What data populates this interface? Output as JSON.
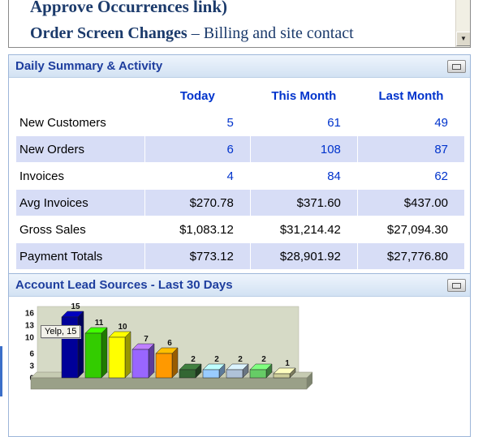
{
  "icons": {
    "scroll_down_glyph": "▼"
  },
  "colors": {
    "accent_title": "#1E3E9E",
    "value_blue": "#0033CC",
    "alt_row": "#D7DDF6",
    "panel_border": "#9DB6D9",
    "link_navy": "#1B3A6B"
  },
  "top_panel": {
    "line1": "Approve Occurrences link)",
    "line2_bold": "Order Screen Changes",
    "line2_rest": " – Billing and site contact"
  },
  "daily_summary": {
    "title": "Daily Summary & Activity",
    "columns": {
      "today": "Today",
      "this_month": "This Month",
      "last_month": "Last Month"
    },
    "rows": [
      {
        "label": "New Customers",
        "today": "5",
        "this_month": "61",
        "last_month": "49"
      },
      {
        "label": "New Orders",
        "today": "6",
        "this_month": "108",
        "last_month": "87"
      },
      {
        "label": "Invoices",
        "today": "4",
        "this_month": "84",
        "last_month": "62"
      },
      {
        "label": "Avg Invoices",
        "today": "$270.78",
        "this_month": "$371.60",
        "last_month": "$437.00"
      },
      {
        "label": "Gross Sales",
        "today": "$1,083.12",
        "this_month": "$31,214.42",
        "last_month": "$27,094.30"
      },
      {
        "label": "Payment Totals",
        "today": "$773.12",
        "this_month": "$28,901.92",
        "last_month": "$27,776.80"
      }
    ]
  },
  "lead_sources": {
    "title": "Account Lead Sources - Last 30 Days",
    "tooltip": "Yelp, 15"
  },
  "chart_data": {
    "type": "bar",
    "title": "Account Lead Sources - Last 30 Days",
    "values": [
      15,
      11,
      10,
      7,
      6,
      2,
      2,
      2,
      2,
      1
    ],
    "bar_colors": [
      "#000099",
      "#33CC00",
      "#FFFF00",
      "#9966FF",
      "#FF9900",
      "#336633",
      "#99CCFF",
      "#AFC2D9",
      "#66CC66",
      "#CCCC99"
    ],
    "value_labels": [
      "15",
      "11",
      "10",
      "7",
      "6",
      "2",
      "2",
      "2",
      "2",
      "1"
    ],
    "y_ticks": [
      16,
      13,
      10,
      6,
      3,
      0
    ],
    "ylim": [
      0,
      16
    ],
    "tooltip": "Yelp, 15",
    "plot_bg": "#D6DAC6",
    "legend": "none",
    "grid": "off"
  }
}
